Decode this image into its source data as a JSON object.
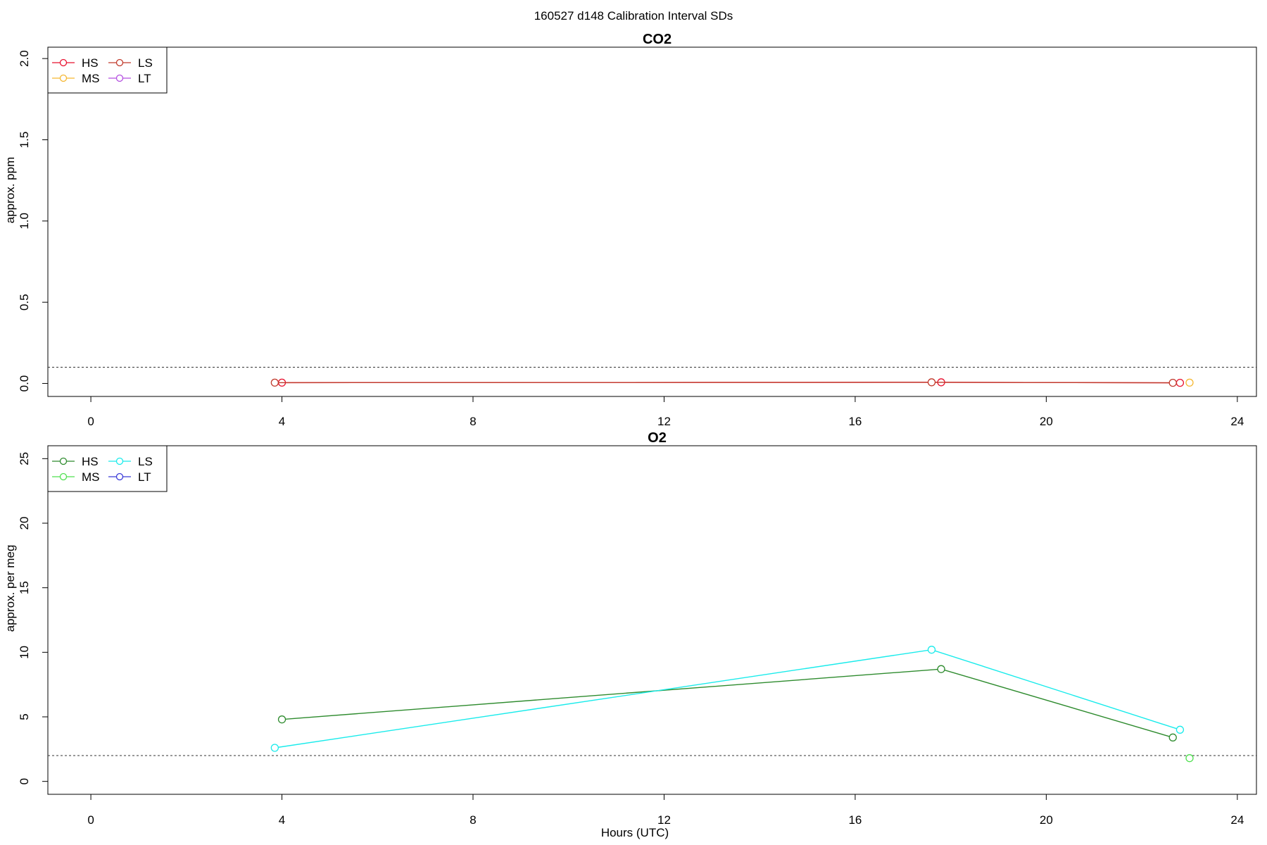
{
  "figure": {
    "title": "160527   d148   Calibration Interval SDs",
    "xlabel": "Hours (UTC)"
  },
  "chart_data": [
    {
      "type": "line",
      "title": "CO2",
      "xlabel": "",
      "ylabel": "approx. ppm",
      "xlim": [
        -0.9,
        24.4
      ],
      "ylim": [
        -0.08,
        2.07
      ],
      "xticks": [
        0,
        4,
        8,
        12,
        16,
        20,
        24
      ],
      "yticks": [
        0.0,
        0.5,
        1.0,
        1.5,
        2.0
      ],
      "ytick_labels": [
        "0.0",
        "0.5",
        "1.0",
        "1.5",
        "2.0"
      ],
      "reference_line": {
        "y": 0.1,
        "style": "dashed"
      },
      "legend": {
        "position": "top-left",
        "columns": 2
      },
      "series": [
        {
          "name": "HS",
          "color": "#e8102e",
          "x": [
            4.0,
            17.8,
            22.8
          ],
          "y": [
            0.005,
            0.007,
            0.004
          ]
        },
        {
          "name": "MS",
          "color": "#f5b731",
          "x": [
            23.0
          ],
          "y": [
            0.005
          ]
        },
        {
          "name": "LS",
          "color": "#c0392b",
          "x": [
            3.85,
            17.6,
            22.65
          ],
          "y": [
            0.005,
            0.007,
            0.004
          ]
        },
        {
          "name": "LT",
          "color": "#b44fe0",
          "x": [],
          "y": []
        }
      ]
    },
    {
      "type": "line",
      "title": "O2",
      "xlabel": "Hours (UTC)",
      "ylabel": "approx. per meg",
      "xlim": [
        -0.9,
        24.4
      ],
      "ylim": [
        -1.0,
        26.0
      ],
      "xticks": [
        0,
        4,
        8,
        12,
        16,
        20,
        24
      ],
      "yticks": [
        0,
        5,
        10,
        15,
        20,
        25
      ],
      "ytick_labels": [
        "0",
        "5",
        "10",
        "15",
        "20",
        "25"
      ],
      "reference_line": {
        "y": 2,
        "style": "dashed"
      },
      "legend": {
        "position": "top-left",
        "columns": 2
      },
      "series": [
        {
          "name": "HS",
          "color": "#2e8b2e",
          "x": [
            4.0,
            17.8,
            22.65
          ],
          "y": [
            4.8,
            8.7,
            3.4
          ]
        },
        {
          "name": "MS",
          "color": "#4fe04f",
          "x": [
            23.0
          ],
          "y": [
            1.8
          ]
        },
        {
          "name": "LS",
          "color": "#19ebeb",
          "x": [
            3.85,
            17.6,
            22.8
          ],
          "y": [
            2.6,
            10.2,
            4.0
          ]
        },
        {
          "name": "LT",
          "color": "#3a3ad8",
          "x": [],
          "y": []
        }
      ]
    }
  ]
}
